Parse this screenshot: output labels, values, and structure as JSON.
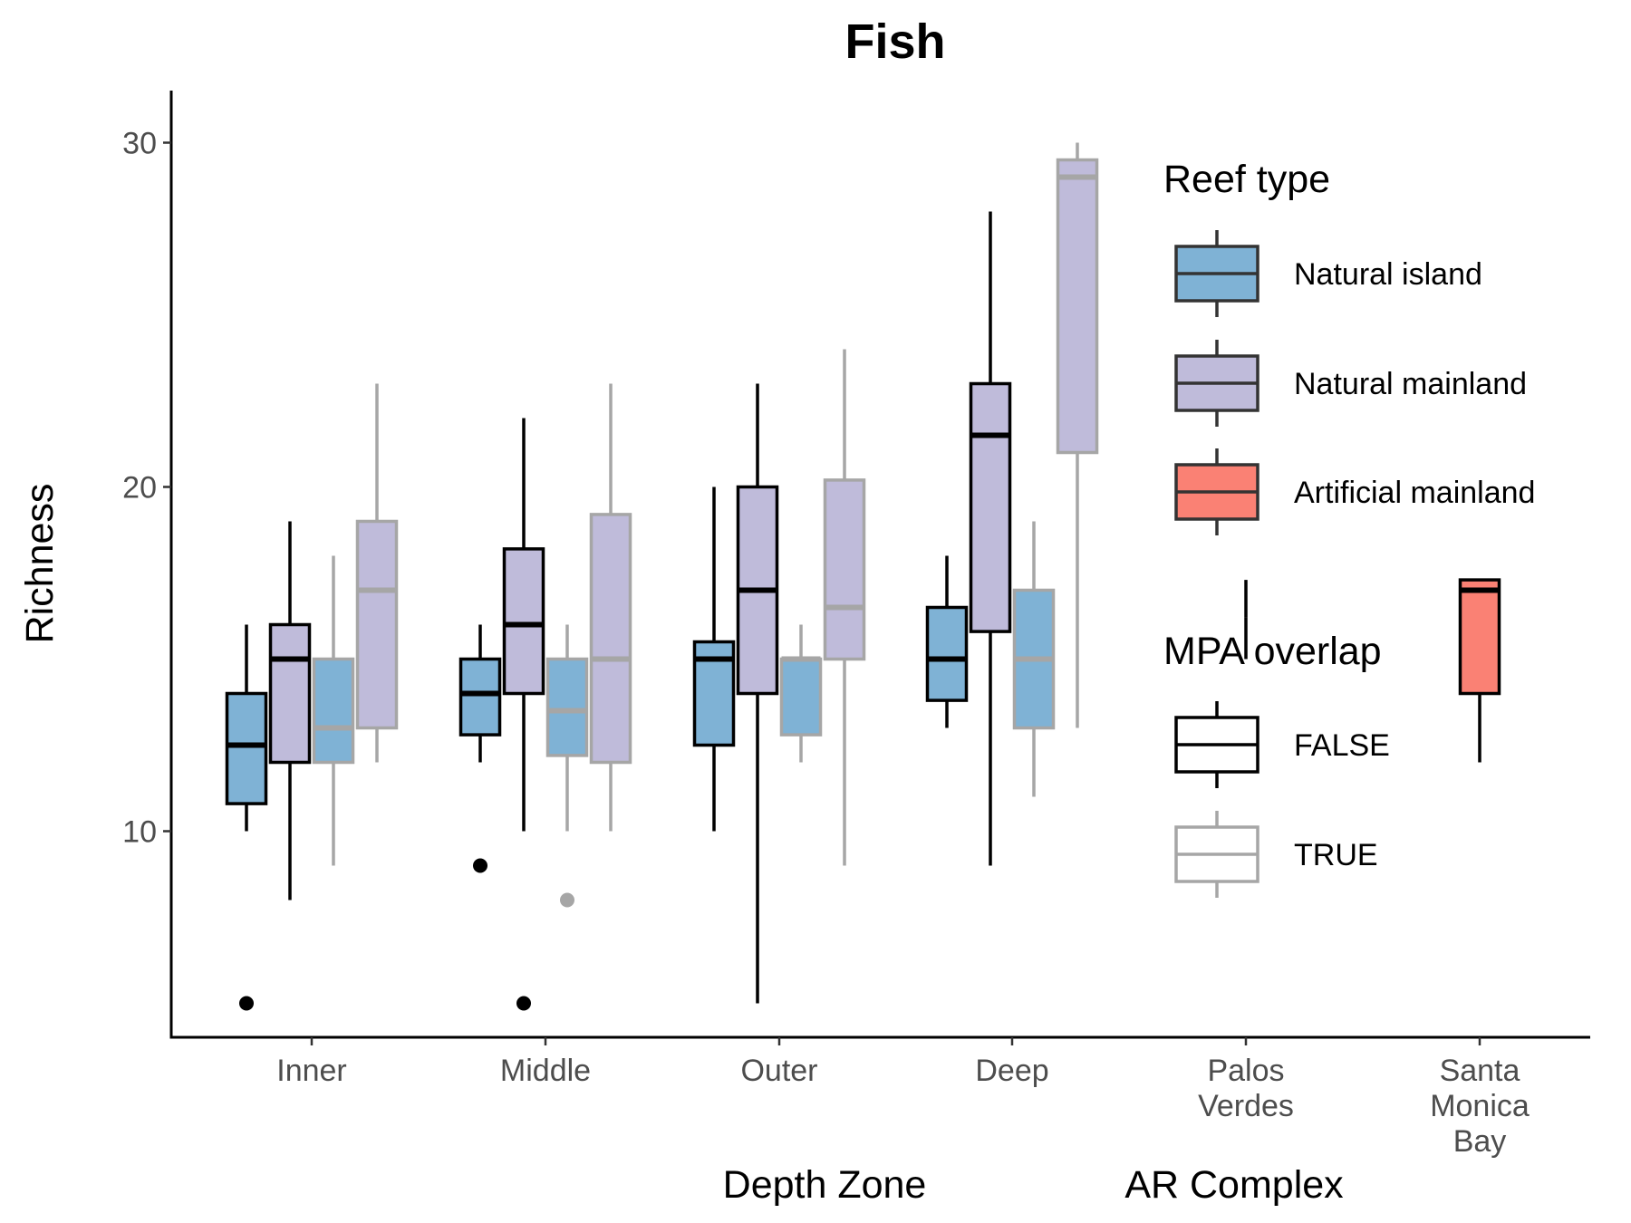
{
  "chart_data": {
    "type": "box",
    "title": "Fish",
    "ylabel": "Richness",
    "ylim": [
      5,
      31
    ],
    "yticks": [
      10,
      20,
      30
    ],
    "grid": false,
    "group_titles": [
      "Depth Zone",
      "AR Complex"
    ],
    "categories": [
      {
        "label": "Inner",
        "lines": [
          "Inner"
        ],
        "group": "Depth Zone"
      },
      {
        "label": "Middle",
        "lines": [
          "Middle"
        ],
        "group": "Depth Zone"
      },
      {
        "label": "Outer",
        "lines": [
          "Outer"
        ],
        "group": "Depth Zone"
      },
      {
        "label": "Deep",
        "lines": [
          "Deep"
        ],
        "group": "Depth Zone"
      },
      {
        "label": "Palos Verdes",
        "lines": [
          "Palos",
          "Verdes"
        ],
        "group": "AR Complex"
      },
      {
        "label": "Santa Monica Bay",
        "lines": [
          "Santa",
          "Monica",
          "Bay"
        ],
        "group": "AR Complex"
      }
    ],
    "boxes": [
      {
        "category": "Inner",
        "reef_type": "Natural island",
        "mpa_overlap": "FALSE",
        "whisker_low": 10,
        "q1": 10.8,
        "median": 12.5,
        "q3": 14,
        "whisker_high": 16,
        "outliers": [
          5
        ]
      },
      {
        "category": "Inner",
        "reef_type": "Natural mainland",
        "mpa_overlap": "FALSE",
        "whisker_low": 8,
        "q1": 12,
        "median": 15,
        "q3": 16,
        "whisker_high": 19,
        "outliers": []
      },
      {
        "category": "Inner",
        "reef_type": "Natural island",
        "mpa_overlap": "TRUE",
        "whisker_low": 9,
        "q1": 12,
        "median": 13,
        "q3": 15,
        "whisker_high": 18,
        "outliers": []
      },
      {
        "category": "Inner",
        "reef_type": "Natural mainland",
        "mpa_overlap": "TRUE",
        "whisker_low": 12,
        "q1": 13,
        "median": 17,
        "q3": 19,
        "whisker_high": 23,
        "outliers": []
      },
      {
        "category": "Middle",
        "reef_type": "Natural island",
        "mpa_overlap": "FALSE",
        "whisker_low": 12,
        "q1": 12.8,
        "median": 14,
        "q3": 15,
        "whisker_high": 16,
        "outliers": [
          9
        ]
      },
      {
        "category": "Middle",
        "reef_type": "Natural mainland",
        "mpa_overlap": "FALSE",
        "whisker_low": 10,
        "q1": 14,
        "median": 16,
        "q3": 18.2,
        "whisker_high": 22,
        "outliers": [
          5
        ]
      },
      {
        "category": "Middle",
        "reef_type": "Natural island",
        "mpa_overlap": "TRUE",
        "whisker_low": 10,
        "q1": 12.2,
        "median": 13.5,
        "q3": 15,
        "whisker_high": 16,
        "outliers": [
          8
        ]
      },
      {
        "category": "Middle",
        "reef_type": "Natural mainland",
        "mpa_overlap": "TRUE",
        "whisker_low": 10,
        "q1": 12,
        "median": 15,
        "q3": 19.2,
        "whisker_high": 23,
        "outliers": []
      },
      {
        "category": "Outer",
        "reef_type": "Natural island",
        "mpa_overlap": "FALSE",
        "whisker_low": 10,
        "q1": 12.5,
        "median": 15,
        "q3": 15.5,
        "whisker_high": 20,
        "outliers": []
      },
      {
        "category": "Outer",
        "reef_type": "Natural mainland",
        "mpa_overlap": "FALSE",
        "whisker_low": 5,
        "q1": 14,
        "median": 17,
        "q3": 20,
        "whisker_high": 23,
        "outliers": []
      },
      {
        "category": "Outer",
        "reef_type": "Natural island",
        "mpa_overlap": "TRUE",
        "whisker_low": 12,
        "q1": 12.8,
        "median": 15,
        "q3": 15,
        "whisker_high": 16,
        "outliers": []
      },
      {
        "category": "Outer",
        "reef_type": "Natural mainland",
        "mpa_overlap": "TRUE",
        "whisker_low": 9,
        "q1": 15,
        "median": 16.5,
        "q3": 20.2,
        "whisker_high": 24,
        "outliers": []
      },
      {
        "category": "Deep",
        "reef_type": "Natural island",
        "mpa_overlap": "FALSE",
        "whisker_low": 13,
        "q1": 13.8,
        "median": 15,
        "q3": 16.5,
        "whisker_high": 18,
        "outliers": []
      },
      {
        "category": "Deep",
        "reef_type": "Natural mainland",
        "mpa_overlap": "FALSE",
        "whisker_low": 9,
        "q1": 15.8,
        "median": 21.5,
        "q3": 23,
        "whisker_high": 28,
        "outliers": []
      },
      {
        "category": "Deep",
        "reef_type": "Natural island",
        "mpa_overlap": "TRUE",
        "whisker_low": 11,
        "q1": 13,
        "median": 15,
        "q3": 17,
        "whisker_high": 19,
        "outliers": []
      },
      {
        "category": "Deep",
        "reef_type": "Natural mainland",
        "mpa_overlap": "TRUE",
        "whisker_low": 13,
        "q1": 21,
        "median": 29,
        "q3": 29.5,
        "whisker_high": 30,
        "outliers": []
      },
      {
        "category": "Palos Verdes",
        "reef_type": "Artificial mainland",
        "mpa_overlap": "FALSE",
        "whisker_low": 15,
        "q1": 16.2,
        "median": 16.2,
        "q3": 16.2,
        "whisker_high": 17.3,
        "outliers": []
      },
      {
        "category": "Santa Monica Bay",
        "reef_type": "Artificial mainland",
        "mpa_overlap": "FALSE",
        "whisker_low": 12,
        "q1": 14,
        "median": 17,
        "q3": 17.3,
        "whisker_high": 17.3,
        "outliers": []
      }
    ],
    "legend": {
      "placement": "right",
      "fill_title": "Reef type",
      "fill_items": [
        {
          "label": "Natural island",
          "color": "#7fb2d5"
        },
        {
          "label": "Natural mainland",
          "color": "#bfbbda"
        },
        {
          "label": "Artificial mainland",
          "color": "#fa8174"
        }
      ],
      "color_title": "MPA overlap",
      "color_items": [
        {
          "label": "FALSE",
          "color": "#000000"
        },
        {
          "label": "TRUE",
          "color": "#a6a6a6"
        }
      ]
    }
  }
}
